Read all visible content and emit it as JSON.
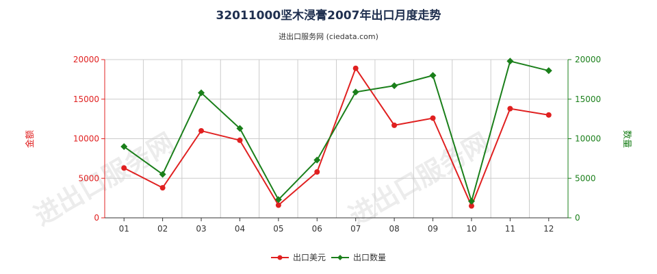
{
  "header": {
    "title": "32011000坚木浸膏2007年出口月度走势",
    "subtitle": "进出口服务网 (ciedata.com)"
  },
  "watermark": "进出口服务网",
  "colors": {
    "amount": "#e02020",
    "quantity": "#1a7f1a",
    "grid": "#cccccc"
  },
  "chart_data": {
    "type": "line",
    "title": "32011000坚木浸膏2007年出口月度走势",
    "categories": [
      "01",
      "02",
      "03",
      "04",
      "05",
      "06",
      "07",
      "08",
      "09",
      "10",
      "11",
      "12"
    ],
    "y_left": {
      "label": "金额",
      "lim": [
        0,
        20000
      ],
      "ticks": [
        "0",
        "5000",
        "10000",
        "15000",
        "20000"
      ]
    },
    "y_right": {
      "label": "数量",
      "lim": [
        0,
        20000
      ],
      "ticks": [
        "0",
        "5000",
        "10000",
        "15000",
        "20000"
      ]
    },
    "grid": true,
    "legend_position": "bottom",
    "series": [
      {
        "name": "出口美元",
        "axis": "left",
        "color": "#e02020",
        "values": [
          6300,
          3800,
          11000,
          9800,
          1600,
          5800,
          18900,
          11700,
          12600,
          1500,
          13800,
          13000
        ]
      },
      {
        "name": "出口数量",
        "axis": "right",
        "color": "#1a7f1a",
        "values": [
          9000,
          5500,
          15800,
          11300,
          2300,
          7300,
          15900,
          16700,
          18000,
          2100,
          19800,
          18600
        ]
      }
    ]
  }
}
